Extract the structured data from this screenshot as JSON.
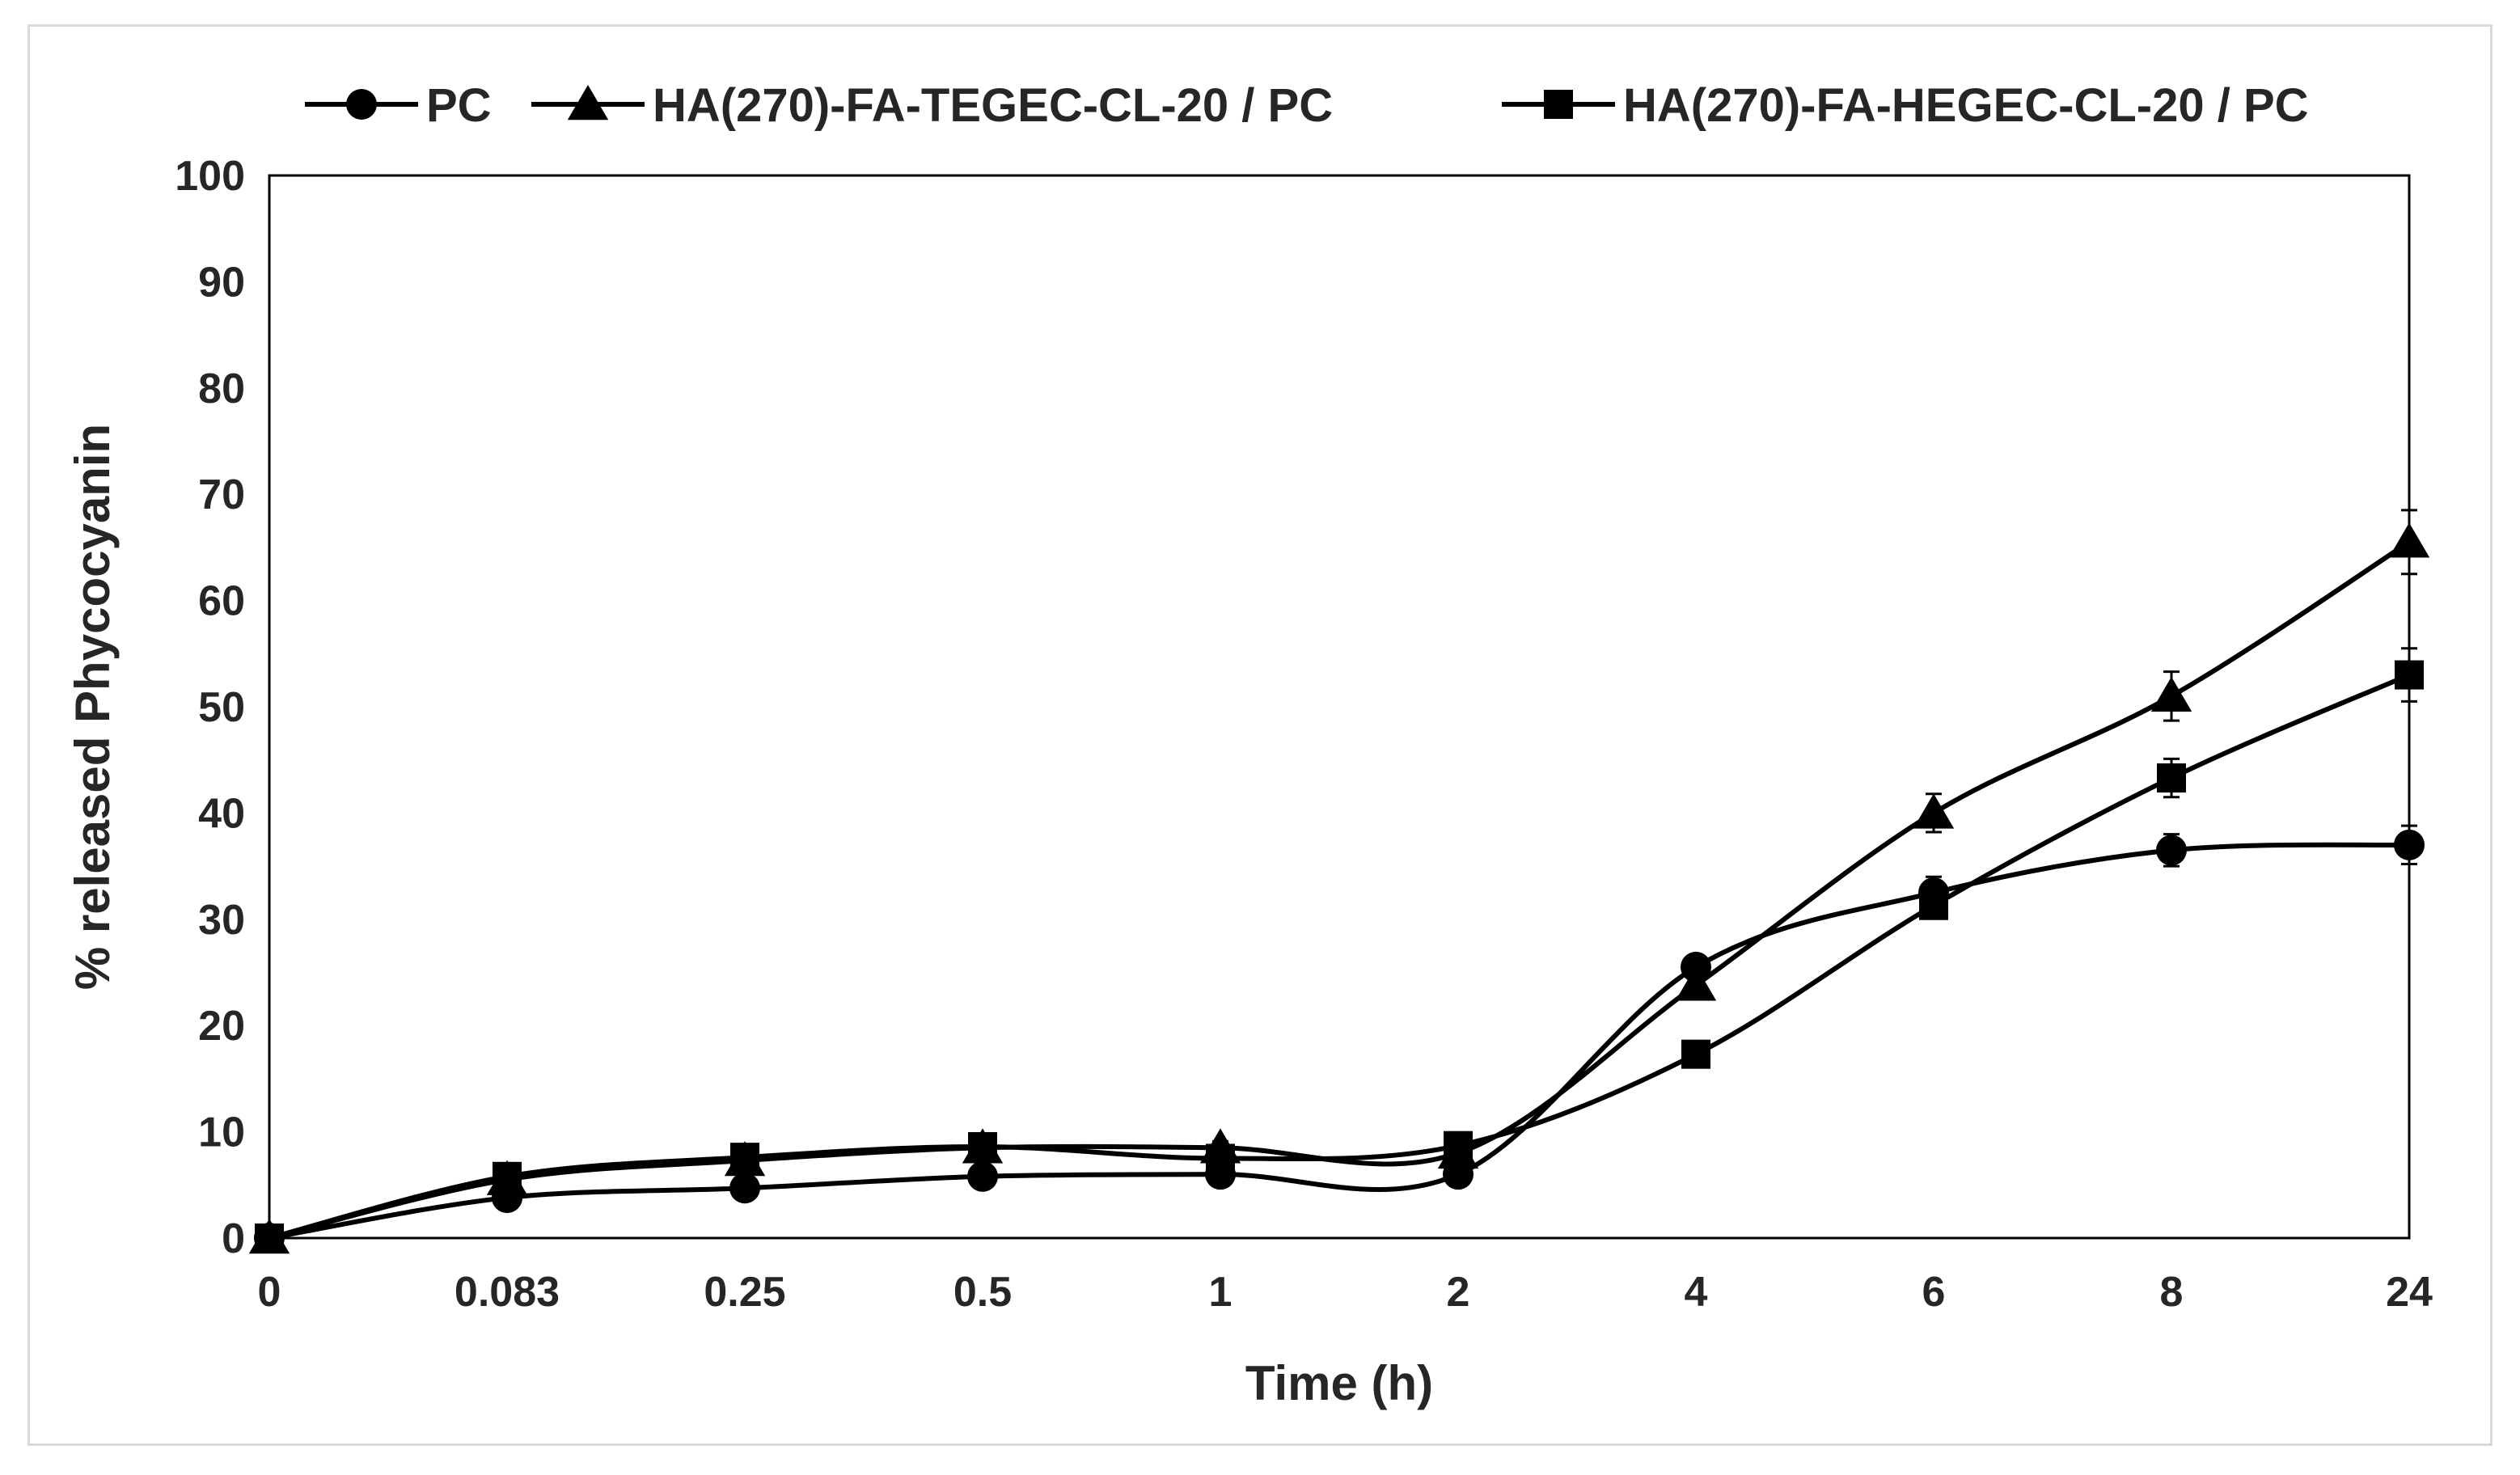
{
  "chart_data": {
    "type": "line",
    "title": "",
    "xlabel": "Time (h)",
    "ylabel": "% released Phycocyanin",
    "categories": [
      "0",
      "0.083",
      "0.25",
      "0.5",
      "1",
      "2",
      "4",
      "6",
      "8",
      "24"
    ],
    "ylim": [
      0,
      100
    ],
    "yticks": [
      "0",
      "10",
      "20",
      "30",
      "40",
      "50",
      "60",
      "70",
      "80",
      "90",
      "100"
    ],
    "grid": false,
    "legend_position": "top",
    "series": [
      {
        "name": "PC",
        "marker": "circle",
        "values": [
          0,
          3.8,
          4.7,
          5.8,
          6.0,
          6.0,
          25.5,
          32.5,
          36.5,
          37.0
        ],
        "errors": [
          0,
          0.4,
          0.4,
          0.5,
          0.5,
          0.5,
          1.0,
          1.5,
          1.5,
          1.8
        ]
      },
      {
        "name": "HA(270)-FA-TEGEC-CL-20 / PC",
        "marker": "triangle",
        "values": [
          0,
          5.5,
          7.3,
          8.5,
          8.5,
          8.0,
          23.8,
          40.0,
          51.0,
          65.5
        ],
        "errors": [
          0,
          0.5,
          0.5,
          0.5,
          0.6,
          0.6,
          1.0,
          1.8,
          2.3,
          3.0
        ]
      },
      {
        "name": "HA(270)-FA-HEGEC-CL-20 / PC",
        "marker": "square",
        "values": [
          0,
          5.8,
          7.6,
          8.6,
          7.5,
          8.7,
          17.3,
          31.3,
          43.3,
          53.0
        ],
        "errors": [
          0,
          0.5,
          0.5,
          0.5,
          0.6,
          0.6,
          0.8,
          1.2,
          1.8,
          2.5
        ]
      }
    ],
    "colors": {
      "line": "#000000",
      "axis": "#000000",
      "text": "#262626",
      "frame": "#d9d9d9"
    }
  }
}
